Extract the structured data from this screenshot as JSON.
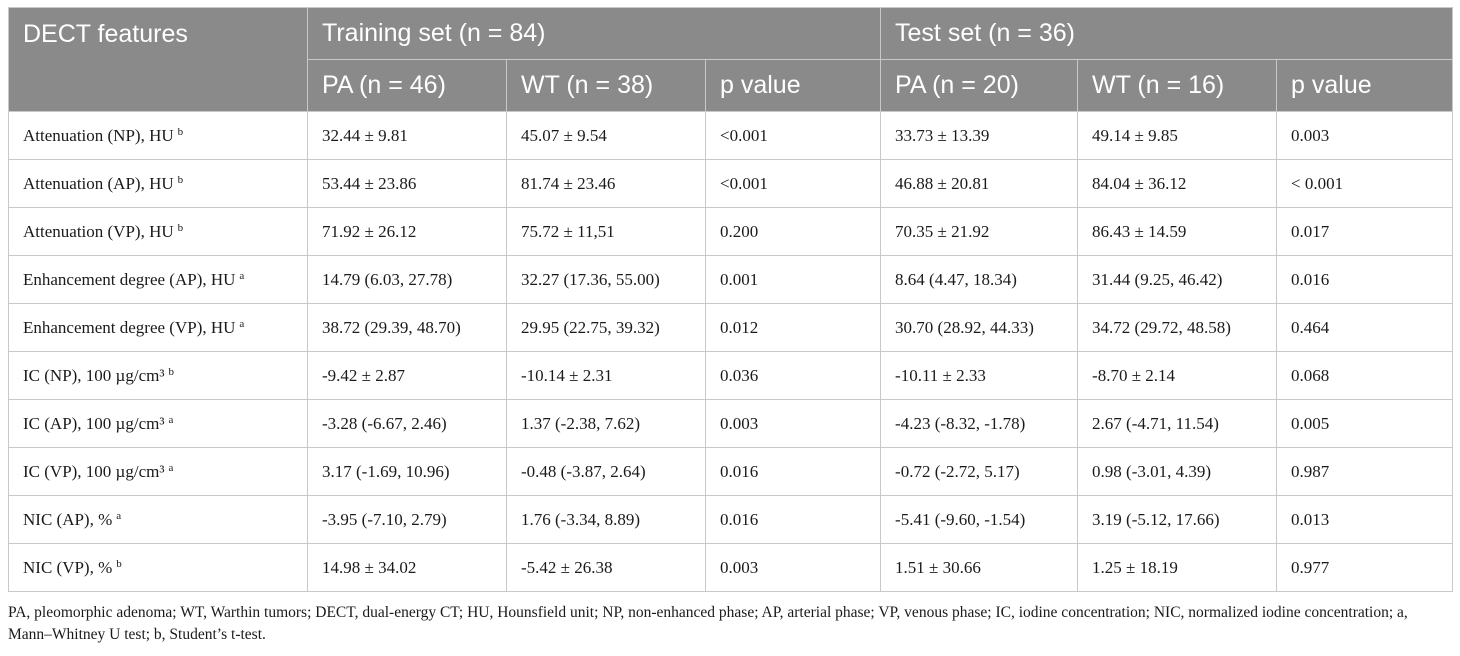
{
  "header": {
    "features_label": "DECT features",
    "training_label": "Training set (n = 84)",
    "test_label": "Test set (n = 36)",
    "columns": [
      "PA (n = 46)",
      "WT (n = 38)",
      "p value",
      "PA (n = 20)",
      "WT (n = 16)",
      "p value"
    ]
  },
  "rows": [
    {
      "feature": "Attenuation (NP), HU",
      "sup": "b",
      "values": [
        "32.44 ± 9.81",
        "45.07 ± 9.54",
        "<0.001",
        "33.73 ± 13.39",
        "49.14 ± 9.85",
        "0.003"
      ]
    },
    {
      "feature": "Attenuation (AP), HU",
      "sup": "b",
      "values": [
        "53.44 ± 23.86",
        "81.74 ± 23.46",
        "<0.001",
        "46.88 ± 20.81",
        "84.04 ± 36.12",
        "< 0.001"
      ]
    },
    {
      "feature": "Attenuation (VP), HU",
      "sup": "b",
      "values": [
        "71.92 ± 26.12",
        "75.72 ± 11,51",
        "0.200",
        "70.35 ± 21.92",
        "86.43 ± 14.59",
        "0.017"
      ]
    },
    {
      "feature": "Enhancement degree (AP), HU",
      "sup": "a",
      "values": [
        "14.79 (6.03, 27.78)",
        "32.27 (17.36, 55.00)",
        "0.001",
        "8.64 (4.47, 18.34)",
        "31.44 (9.25, 46.42)",
        "0.016"
      ]
    },
    {
      "feature": "Enhancement degree (VP), HU",
      "sup": "a",
      "values": [
        "38.72 (29.39, 48.70)",
        "29.95 (22.75, 39.32)",
        "0.012",
        "30.70 (28.92, 44.33)",
        "34.72 (29.72, 48.58)",
        "0.464"
      ]
    },
    {
      "feature": "IC (NP), 100 µg/cm³",
      "sup": "b",
      "values": [
        "-9.42 ± 2.87",
        "-10.14 ± 2.31",
        "0.036",
        "-10.11 ± 2.33",
        "-8.70 ± 2.14",
        "0.068"
      ]
    },
    {
      "feature": "IC (AP), 100 µg/cm³",
      "sup": "a",
      "values": [
        "-3.28 (-6.67, 2.46)",
        "1.37 (-2.38, 7.62)",
        "0.003",
        "-4.23 (-8.32, -1.78)",
        "2.67 (-4.71, 11.54)",
        "0.005"
      ]
    },
    {
      "feature": "IC (VP), 100 µg/cm³",
      "sup": "a",
      "values": [
        "3.17 (-1.69, 10.96)",
        "-0.48 (-3.87, 2.64)",
        "0.016",
        "-0.72 (-2.72, 5.17)",
        "0.98 (-3.01, 4.39)",
        "0.987"
      ]
    },
    {
      "feature": "NIC (AP), %",
      "sup": "a",
      "values": [
        "-3.95 (-7.10, 2.79)",
        "1.76 (-3.34, 8.89)",
        "0.016",
        "-5.41 (-9.60, -1.54)",
        "3.19 (-5.12, 17.66)",
        "0.013"
      ]
    },
    {
      "feature": "NIC (VP), %",
      "sup": "b",
      "values": [
        "14.98 ± 34.02",
        "-5.42 ± 26.38",
        "0.003",
        "1.51 ± 30.66",
        "1.25 ± 18.19",
        "0.977"
      ]
    }
  ],
  "footnote": "PA, pleomorphic adenoma; WT, Warthin tumors; DECT, dual-energy CT; HU, Hounsfield unit; NP, non-enhanced phase; AP, arterial phase; VP, venous phase; IC, iodine concentration; NIC, normalized iodine concentration; a, Mann–Whitney U test; b, Student’s t-test.",
  "colors": {
    "header_bg": "#8a8a8a",
    "header_text": "#ffffff",
    "border": "#c8c8c8"
  }
}
